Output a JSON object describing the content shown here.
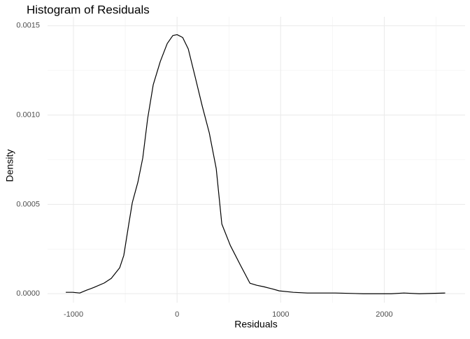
{
  "chart_data": {
    "type": "line",
    "title": "Histogram of Residuals",
    "xlabel": "Residuals",
    "ylabel": "Density",
    "x": [
      -1074,
      -1007,
      -939,
      -872,
      -804,
      -703,
      -635,
      -554,
      -514,
      -466,
      -432,
      -378,
      -331,
      -284,
      -230,
      -162,
      -95,
      -41,
      0,
      54,
      108,
      176,
      243,
      311,
      378,
      432,
      514,
      615,
      703,
      770,
      838,
      919,
      986,
      1122,
      1257,
      1527,
      1797,
      2068,
      2189,
      2338,
      2588
    ],
    "y": [
      8e-06,
      8e-06,
      4e-06,
      2e-05,
      3.5e-05,
      6e-05,
      8.6e-05,
      0.000145,
      0.000215,
      0.00039,
      0.00051,
      0.000625,
      0.00076,
      0.00098,
      0.00117,
      0.0013,
      0.0014,
      0.001445,
      0.00145,
      0.001434,
      0.00137,
      0.00121,
      0.00105,
      0.0009,
      0.0007,
      0.00039,
      0.00027,
      0.000156,
      5.9e-05,
      4.7e-05,
      3.9e-05,
      2.7e-05,
      1.6e-05,
      8e-06,
      4e-06,
      4e-06,
      0,
      0,
      4e-06,
      0,
      4e-06
    ],
    "color": "#000000",
    "xlim": [
      -1250,
      2780
    ],
    "ylim": [
      -5e-05,
      0.00155
    ],
    "xticks": [
      -1000,
      0,
      1000,
      2000
    ],
    "yticks": [
      {
        "value": 0,
        "label": "0.0000"
      },
      {
        "value": 0.0005,
        "label": "0.0005"
      },
      {
        "value": 0.001,
        "label": "0.0010"
      },
      {
        "value": 0.0015,
        "label": "0.0015"
      }
    ],
    "xminor": [
      -500,
      500,
      1500,
      2500
    ],
    "yminor": [
      0.00025,
      0.00075,
      0.00125
    ],
    "grid": true
  }
}
